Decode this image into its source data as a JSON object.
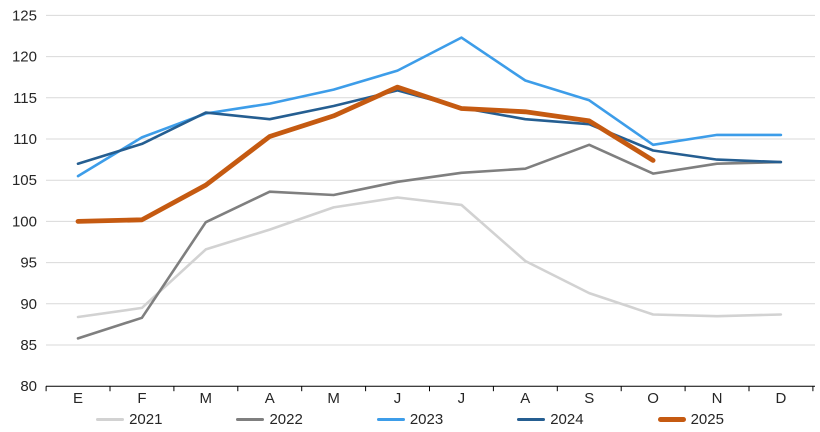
{
  "chart_data": {
    "type": "line",
    "title": "",
    "xlabel": "",
    "ylabel": "",
    "categories": [
      "E",
      "F",
      "M",
      "A",
      "M",
      "J",
      "J",
      "A",
      "S",
      "O",
      "N",
      "D"
    ],
    "y_axis": {
      "min": 80,
      "max": 125,
      "step": 5,
      "ticks": [
        80,
        85,
        90,
        95,
        100,
        105,
        110,
        115,
        120,
        125
      ]
    },
    "grid": "horizontal",
    "gridline_color": "#d9d9d9",
    "axis_color": "#000000",
    "label_color": "#262626",
    "legend_position": "bottom",
    "series": [
      {
        "name": "2021",
        "color": "#d2d2d2",
        "thick": false,
        "values": [
          88.4,
          89.5,
          96.6,
          99.0,
          101.7,
          102.9,
          102.0,
          95.2,
          91.3,
          88.7,
          88.5,
          88.7
        ]
      },
      {
        "name": "2022",
        "color": "#7f7f7f",
        "thick": false,
        "values": [
          85.8,
          88.3,
          99.9,
          103.6,
          103.2,
          104.8,
          105.9,
          106.4,
          109.3,
          105.8,
          107.0,
          107.2
        ]
      },
      {
        "name": "2023",
        "color": "#3d9de9",
        "thick": false,
        "values": [
          105.5,
          110.2,
          113.1,
          114.3,
          116.0,
          118.3,
          122.3,
          117.1,
          114.7,
          109.3,
          110.5,
          110.5
        ]
      },
      {
        "name": "2024",
        "color": "#255e91",
        "thick": false,
        "values": [
          107.0,
          109.4,
          113.2,
          112.4,
          114.0,
          115.9,
          113.8,
          112.4,
          111.8,
          108.6,
          107.5,
          107.2
        ]
      },
      {
        "name": "2025",
        "color": "#c55a11",
        "thick": true,
        "values": [
          100.0,
          100.2,
          104.4,
          110.3,
          112.8,
          116.3,
          113.7,
          113.3,
          112.2,
          107.4,
          null,
          null
        ]
      }
    ]
  }
}
